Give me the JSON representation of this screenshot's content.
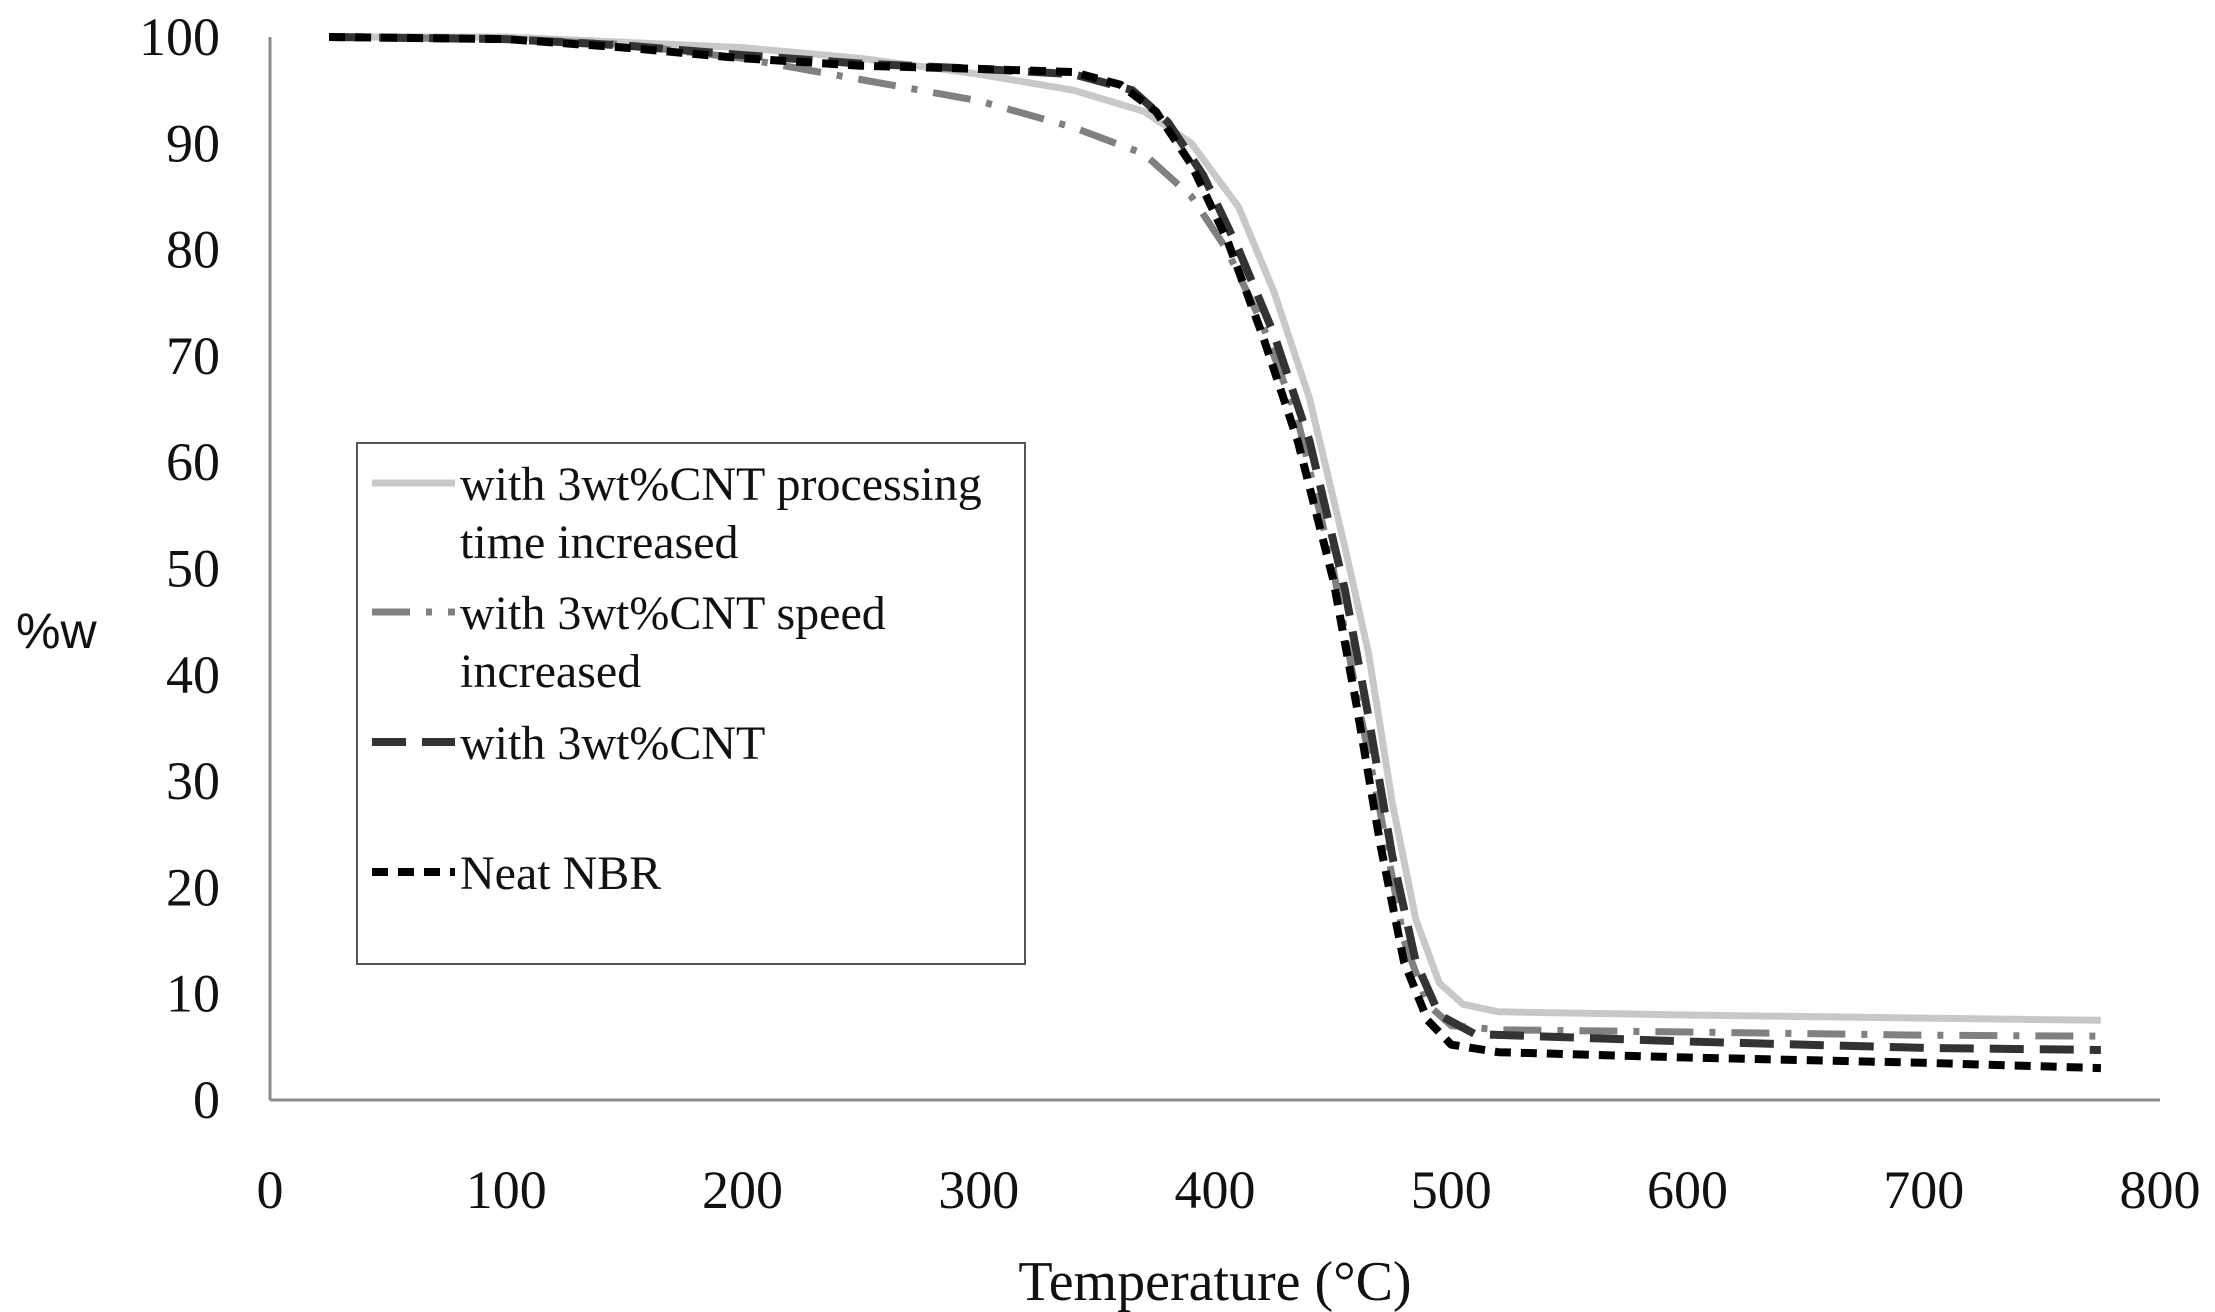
{
  "chart_data": {
    "type": "line",
    "title": "",
    "xlabel": "Temperature (°C)",
    "ylabel": "%w",
    "xlim": [
      0,
      800
    ],
    "ylim": [
      0,
      100
    ],
    "x_ticks": [
      0,
      100,
      200,
      300,
      400,
      500,
      600,
      700,
      800
    ],
    "y_ticks": [
      0,
      10,
      20,
      30,
      40,
      50,
      60,
      70,
      80,
      90,
      100
    ],
    "grid": false,
    "legend_position": "left-middle",
    "series": [
      {
        "name": "with 3wt%CNT processing time increased",
        "legend_lines": [
          "with 3wt%CNT processing",
          "time increased"
        ],
        "color": "#c8c8c8",
        "style": "solid",
        "points": [
          [
            25,
            100
          ],
          [
            100,
            100
          ],
          [
            150,
            99.5
          ],
          [
            200,
            99
          ],
          [
            250,
            98
          ],
          [
            300,
            96.5
          ],
          [
            340,
            95
          ],
          [
            370,
            93
          ],
          [
            390,
            90
          ],
          [
            410,
            84
          ],
          [
            425,
            76
          ],
          [
            440,
            66
          ],
          [
            455,
            52
          ],
          [
            465,
            42
          ],
          [
            475,
            28
          ],
          [
            485,
            17
          ],
          [
            495,
            11
          ],
          [
            505,
            9
          ],
          [
            520,
            8.3
          ],
          [
            600,
            8
          ],
          [
            700,
            7.7
          ],
          [
            775,
            7.5
          ]
        ]
      },
      {
        "name": "with 3wt%CNT speed increased",
        "legend_lines": [
          "with 3wt%CNT speed",
          "increased"
        ],
        "color": "#808080",
        "style": "dashdot",
        "points": [
          [
            25,
            100
          ],
          [
            100,
            99.8
          ],
          [
            150,
            99.3
          ],
          [
            200,
            98
          ],
          [
            250,
            96
          ],
          [
            300,
            94
          ],
          [
            340,
            91.5
          ],
          [
            370,
            89
          ],
          [
            390,
            85
          ],
          [
            405,
            80
          ],
          [
            420,
            73
          ],
          [
            435,
            64
          ],
          [
            450,
            50
          ],
          [
            460,
            38
          ],
          [
            470,
            27
          ],
          [
            480,
            15
          ],
          [
            490,
            9
          ],
          [
            500,
            7
          ],
          [
            520,
            6.6
          ],
          [
            600,
            6.4
          ],
          [
            700,
            6.1
          ],
          [
            775,
            6
          ]
        ]
      },
      {
        "name": "with 3wt%CNT",
        "legend_lines": [
          "with 3wt%CNT"
        ],
        "color": "#333333",
        "style": "longdash",
        "points": [
          [
            25,
            100
          ],
          [
            100,
            99.8
          ],
          [
            150,
            99.2
          ],
          [
            200,
            98.3
          ],
          [
            250,
            97.5
          ],
          [
            300,
            97
          ],
          [
            340,
            96.5
          ],
          [
            365,
            95
          ],
          [
            380,
            92
          ],
          [
            395,
            87
          ],
          [
            410,
            80
          ],
          [
            425,
            72
          ],
          [
            440,
            62
          ],
          [
            455,
            48
          ],
          [
            465,
            36
          ],
          [
            475,
            23
          ],
          [
            485,
            13
          ],
          [
            495,
            8
          ],
          [
            510,
            6.2
          ],
          [
            600,
            5.5
          ],
          [
            700,
            4.9
          ],
          [
            775,
            4.7
          ]
        ]
      },
      {
        "name": "Neat NBR",
        "legend_lines": [
          "Neat NBR"
        ],
        "color": "#000000",
        "style": "shortdash",
        "points": [
          [
            25,
            100
          ],
          [
            100,
            99.8
          ],
          [
            150,
            99
          ],
          [
            200,
            98
          ],
          [
            250,
            97.3
          ],
          [
            300,
            97
          ],
          [
            340,
            96.7
          ],
          [
            360,
            95.5
          ],
          [
            375,
            93
          ],
          [
            390,
            88
          ],
          [
            405,
            81
          ],
          [
            420,
            72
          ],
          [
            435,
            62
          ],
          [
            450,
            49
          ],
          [
            460,
            37
          ],
          [
            470,
            24
          ],
          [
            480,
            13
          ],
          [
            490,
            7.5
          ],
          [
            500,
            5.2
          ],
          [
            520,
            4.5
          ],
          [
            600,
            4
          ],
          [
            700,
            3.5
          ],
          [
            775,
            3
          ]
        ]
      }
    ]
  }
}
